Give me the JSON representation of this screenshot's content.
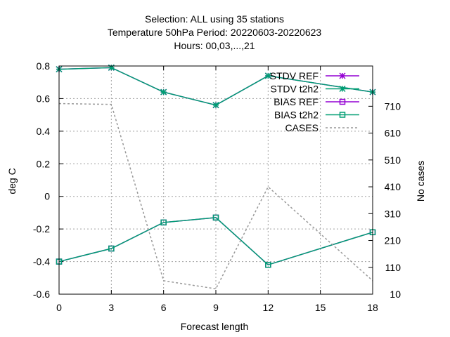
{
  "chart_data": {
    "type": "line",
    "title_lines": [
      "Selection: ALL using    35 stations",
      "Temperature 50hPa   Period: 20220603-20220623",
      "Hours:  00,03,...,21"
    ],
    "xlabel": "Forecast length",
    "ylabel": "deg C",
    "y2label": "No cases",
    "x": [
      0,
      3,
      6,
      9,
      12,
      15,
      18
    ],
    "xlim": [
      0,
      18
    ],
    "ylim": [
      -0.6,
      0.8
    ],
    "y2lim": [
      10,
      860
    ],
    "xticks": [
      "0",
      "3",
      "6",
      "9",
      "12",
      "15",
      "18"
    ],
    "yticks": [
      -0.6,
      -0.4,
      -0.2,
      0,
      0.2,
      0.4,
      0.6,
      0.8
    ],
    "ytick_labels": [
      "-0.6",
      "-0.4",
      "-0.2",
      "0",
      "0.2",
      "0.4",
      "0.6",
      "0.8"
    ],
    "y2ticks": [
      10,
      110,
      210,
      310,
      410,
      510,
      610,
      710
    ],
    "y2tick_labels": [
      "10",
      "110",
      "210",
      "310",
      "410",
      "510",
      "610",
      "710"
    ],
    "grid": true,
    "legend_position": "top-right",
    "series": [
      {
        "name": "STDV REF",
        "axis": "y1",
        "color": "#9400d3",
        "marker": "star",
        "dash": false,
        "x": [
          0,
          3,
          6,
          9,
          12,
          18
        ],
        "values": [
          0.78,
          0.79,
          0.64,
          0.56,
          0.74,
          0.64
        ]
      },
      {
        "name": "STDV t2h2",
        "axis": "y1",
        "color": "#009e73",
        "marker": "star",
        "dash": false,
        "x": [
          0,
          3,
          6,
          9,
          12,
          18
        ],
        "values": [
          0.78,
          0.79,
          0.64,
          0.56,
          0.74,
          0.64
        ]
      },
      {
        "name": "BIAS REF",
        "axis": "y1",
        "color": "#9400d3",
        "marker": "square",
        "dash": false,
        "x": [
          0,
          3,
          6,
          9,
          12,
          18
        ],
        "values": [
          -0.4,
          -0.32,
          -0.16,
          -0.13,
          -0.42,
          -0.22
        ]
      },
      {
        "name": "BIAS t2h2",
        "axis": "y1",
        "color": "#009e73",
        "marker": "square",
        "dash": false,
        "x": [
          0,
          3,
          6,
          9,
          12,
          18
        ],
        "values": [
          -0.4,
          -0.32,
          -0.16,
          -0.13,
          -0.42,
          -0.22
        ]
      },
      {
        "name": "CASES",
        "axis": "y2",
        "color": "#999999",
        "marker": "none",
        "dash": true,
        "x": [
          0,
          3,
          6,
          9,
          12,
          18
        ],
        "values": [
          720,
          717,
          60,
          30,
          410,
          60
        ]
      }
    ]
  }
}
